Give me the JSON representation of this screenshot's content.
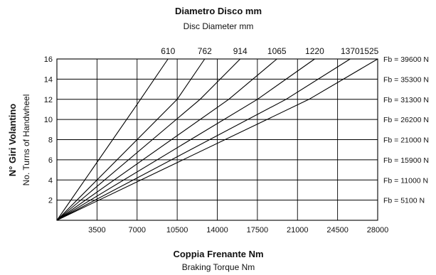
{
  "header": {
    "title_it": "Diametro Disco  mm",
    "title_en": "Disc Diameter  mm"
  },
  "xaxis": {
    "title_it": "Coppia Frenante  Nm",
    "title_en": "Braking Torque  Nm"
  },
  "yaxis": {
    "title_it": "N° Giri Volantino",
    "title_en": "No. Turns of Handwheel"
  },
  "chart_data": {
    "type": "line",
    "title": "Diametro Disco  mm",
    "subtitle": "Disc Diameter  mm",
    "xlabel": "Coppia Frenante  Nm / Braking Torque  Nm",
    "ylabel": "N° Giri Volantino / No. Turns of Handwheel",
    "xlim": [
      0,
      28000
    ],
    "ylim": [
      0,
      16
    ],
    "x_ticks": [
      "3500",
      "7000",
      "10500",
      "14000",
      "17500",
      "21000",
      "24500",
      "28000"
    ],
    "y_ticks": [
      "2",
      "4",
      "6",
      "8",
      "10",
      "12",
      "14",
      "16"
    ],
    "grid": true,
    "right_labels": [
      "Fb = 39600 N",
      "Fb = 35300 N",
      "Fb = 31300 N",
      "Fb = 26200 N",
      "Fb = 21000 N",
      "Fb = 15900 N",
      "Fb = 11000 N",
      "Fb = 5100 N"
    ],
    "series": [
      {
        "name": "610",
        "points": [
          [
            0,
            0
          ],
          [
            7000,
            11.5
          ],
          [
            9700,
            16
          ]
        ]
      },
      {
        "name": "762",
        "points": [
          [
            0,
            0
          ],
          [
            10500,
            12
          ],
          [
            12900,
            16
          ]
        ]
      },
      {
        "name": "914",
        "points": [
          [
            0,
            0
          ],
          [
            12500,
            12
          ],
          [
            16000,
            16
          ]
        ]
      },
      {
        "name": "1065",
        "points": [
          [
            0,
            0
          ],
          [
            15000,
            12
          ],
          [
            19200,
            16
          ]
        ]
      },
      {
        "name": "1220",
        "points": [
          [
            0,
            0
          ],
          [
            17500,
            12
          ],
          [
            22500,
            16
          ]
        ]
      },
      {
        "name": "1370",
        "points": [
          [
            0,
            0
          ],
          [
            20000,
            12
          ],
          [
            25600,
            16
          ]
        ]
      },
      {
        "name": "1525",
        "points": [
          [
            0,
            0
          ],
          [
            22000,
            12
          ],
          [
            28000,
            16
          ]
        ]
      }
    ]
  }
}
